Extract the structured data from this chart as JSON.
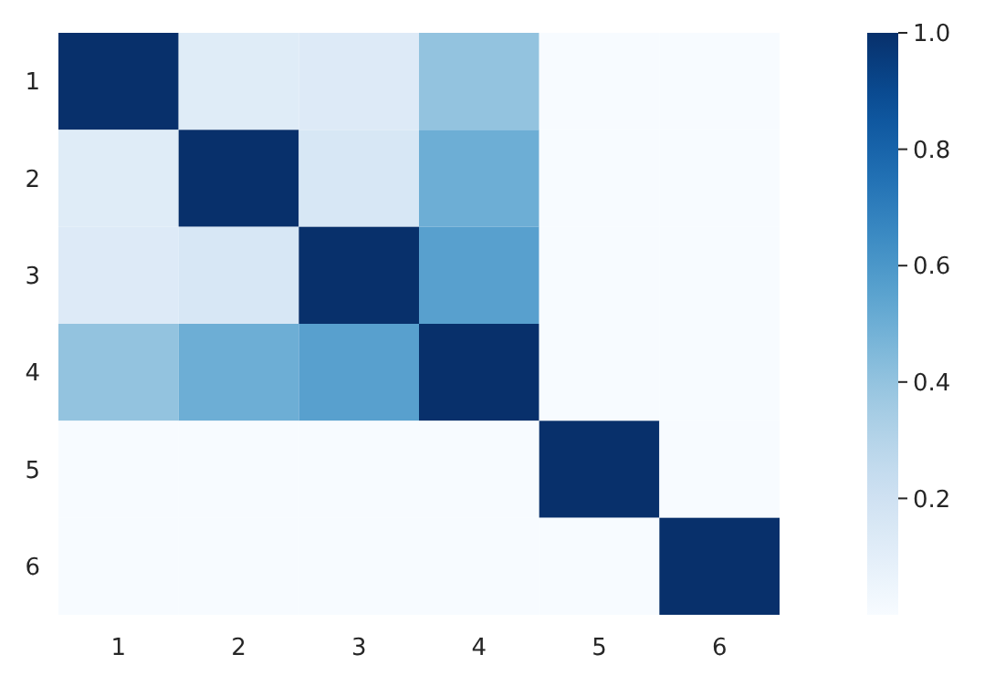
{
  "chart_data": {
    "type": "heatmap",
    "categories": [
      "1",
      "2",
      "3",
      "4",
      "5",
      "6"
    ],
    "y_categories": [
      "1",
      "2",
      "3",
      "4",
      "5",
      "6"
    ],
    "cells": [
      [
        1,
        0.12,
        0.13,
        0.4,
        0,
        0
      ],
      [
        0.12,
        1,
        0.16,
        0.5,
        0,
        0
      ],
      [
        0.13,
        0.16,
        1,
        0.56,
        0,
        0
      ],
      [
        0.4,
        0.5,
        0.56,
        1,
        0,
        0
      ],
      [
        0,
        0,
        0,
        0,
        1,
        0
      ],
      [
        0,
        0,
        0,
        0,
        0,
        1
      ]
    ],
    "clim": [
      0,
      1
    ],
    "cticks": [
      0.2,
      0.4,
      0.6,
      0.8,
      {
        "value": 1,
        "label": "1.0"
      }
    ]
  }
}
